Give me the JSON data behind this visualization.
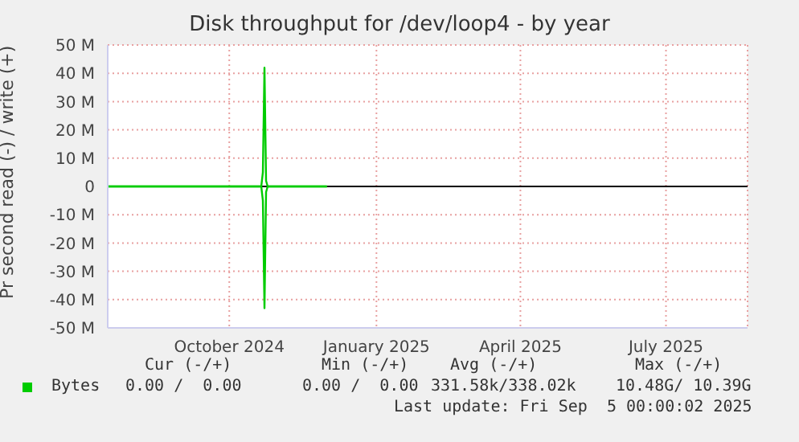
{
  "chart_data": {
    "type": "line",
    "title": "Disk throughput for /dev/loop4 - by year",
    "ylabel": "Pr second read (-) / write (+)",
    "x": [
      "2024-08-01",
      "2024-09-01",
      "2024-10-01",
      "2024-11-01",
      "2024-11-05",
      "2024-11-06",
      "2024-11-07",
      "2024-11-08",
      "2024-11-09",
      "2024-12-01",
      "2024-12-16"
    ],
    "series": [
      {
        "name": "Bytes",
        "color": "#00cc00",
        "values": [
          0,
          0,
          0,
          0,
          0,
          5,
          42,
          2,
          0,
          0,
          0
        ]
      },
      {
        "color": "#00cc00",
        "values": [
          0,
          0,
          0,
          0,
          0,
          -5,
          -43,
          -2,
          0,
          0,
          0
        ]
      }
    ],
    "xlim": [
      "2024-08-01",
      "2025-09-05"
    ],
    "xticks": [
      {
        "value": "2024-10-16",
        "label": "October 2024"
      },
      {
        "value": "2025-01-16",
        "label": "January 2025"
      },
      {
        "value": "2025-04-16",
        "label": "April 2025"
      },
      {
        "value": "2025-07-16",
        "label": "July 2025"
      }
    ],
    "ylim": [
      -50,
      50
    ],
    "yticks": [
      {
        "value": -50,
        "label": "-50 M"
      },
      {
        "value": -40,
        "label": "-40 M"
      },
      {
        "value": -30,
        "label": "-30 M"
      },
      {
        "value": -20,
        "label": "-20 M"
      },
      {
        "value": -10,
        "label": "-10 M"
      },
      0,
      {
        "value": 10,
        "label": "10 M"
      },
      {
        "value": 20,
        "label": "20 M"
      },
      {
        "value": 30,
        "label": "30 M"
      },
      {
        "value": 40,
        "label": "40 M"
      },
      {
        "value": 50,
        "label": "50 M"
      }
    ],
    "grid": true,
    "legend": "bottom",
    "marker": "none",
    "line_style": "solid",
    "ref_lines": [
      {
        "axis": "y",
        "value": 0,
        "color": "#000000"
      }
    ],
    "annotations": [
      "Cur (-/+)",
      "Min (-/+)",
      "Avg (-/+)",
      "Max (-/+)",
      "0.00 /  0.00",
      "0.00 /  0.00",
      "331.58k/338.02k",
      "10.48G/ 10.39G",
      "Last update: Fri Sep  5 00:00:02 2025"
    ]
  }
}
